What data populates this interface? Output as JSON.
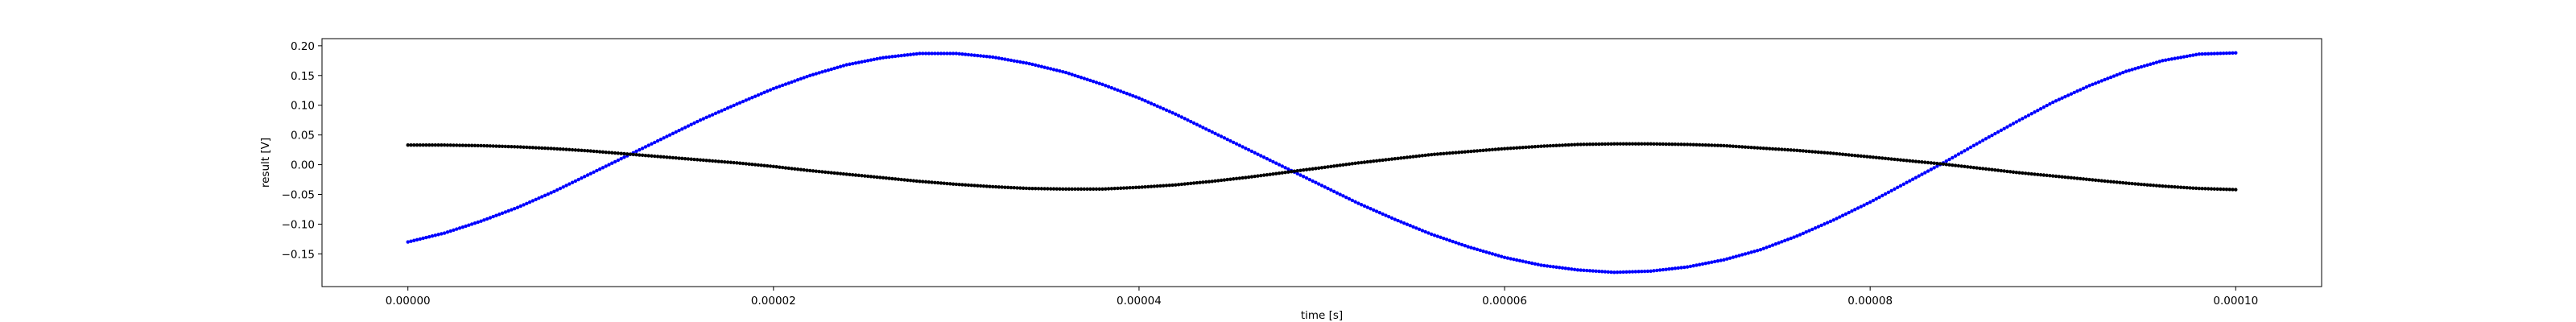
{
  "chart_data": {
    "type": "scatter",
    "title": "",
    "xlabel": "time [s]",
    "ylabel": "result [V]",
    "xlim": [
      -4.7e-06,
      0.0001047
    ],
    "ylim": [
      -0.205,
      0.212
    ],
    "grid": false,
    "legend": "none",
    "x_ticks": [
      {
        "value": 0.0,
        "label": "0.00000"
      },
      {
        "value": 2e-05,
        "label": "0.00002"
      },
      {
        "value": 4e-05,
        "label": "0.00004"
      },
      {
        "value": 6e-05,
        "label": "0.00006"
      },
      {
        "value": 8e-05,
        "label": "0.00008"
      },
      {
        "value": 0.0001,
        "label": "0.00010"
      }
    ],
    "y_ticks": [
      {
        "value": -0.15,
        "label": "−0.15"
      },
      {
        "value": -0.1,
        "label": "−0.10"
      },
      {
        "value": -0.05,
        "label": "−0.05"
      },
      {
        "value": 0.0,
        "label": "0.00"
      },
      {
        "value": 0.05,
        "label": "0.05"
      },
      {
        "value": 0.1,
        "label": "0.10"
      },
      {
        "value": 0.15,
        "label": "0.15"
      },
      {
        "value": 0.2,
        "label": "0.20"
      }
    ],
    "series": [
      {
        "color": "#0000ff",
        "marker": "dot",
        "x": [
          0.0,
          2e-06,
          4e-06,
          6e-06,
          8e-06,
          1e-05,
          1.2e-05,
          1.4e-05,
          1.6e-05,
          1.8e-05,
          2e-05,
          2.2e-05,
          2.4e-05,
          2.6e-05,
          2.8e-05,
          3e-05,
          3.2e-05,
          3.4e-05,
          3.6e-05,
          3.8e-05,
          4e-05,
          4.2e-05,
          4.4e-05,
          4.6e-05,
          4.8e-05,
          5e-05,
          5.2e-05,
          5.4e-05,
          5.6e-05,
          5.8e-05,
          6e-05,
          6.2e-05,
          6.4e-05,
          6.6e-05,
          6.8e-05,
          7e-05,
          7.2e-05,
          7.4e-05,
          7.6e-05,
          7.8e-05,
          8e-05,
          8.2e-05,
          8.4e-05,
          8.6e-05,
          8.8e-05,
          9e-05,
          9.2e-05,
          9.4e-05,
          9.6e-05,
          9.8e-05,
          0.0001
        ],
        "y": [
          -0.13,
          -0.115,
          -0.095,
          -0.072,
          -0.045,
          -0.015,
          0.015,
          0.045,
          0.075,
          0.102,
          0.128,
          0.15,
          0.168,
          0.18,
          0.187,
          0.187,
          0.181,
          0.17,
          0.155,
          0.135,
          0.112,
          0.085,
          0.055,
          0.025,
          -0.005,
          -0.035,
          -0.065,
          -0.092,
          -0.117,
          -0.138,
          -0.156,
          -0.169,
          -0.177,
          -0.181,
          -0.179,
          -0.172,
          -0.16,
          -0.143,
          -0.12,
          -0.093,
          -0.063,
          -0.03,
          0.003,
          0.038,
          0.072,
          0.105,
          0.133,
          0.157,
          0.175,
          0.186,
          0.188
        ]
      },
      {
        "color": "#000000",
        "marker": "dot",
        "x": [
          0.0,
          2e-06,
          4e-06,
          6e-06,
          8e-06,
          1e-05,
          1.2e-05,
          1.4e-05,
          1.6e-05,
          1.8e-05,
          2e-05,
          2.2e-05,
          2.4e-05,
          2.6e-05,
          2.8e-05,
          3e-05,
          3.2e-05,
          3.4e-05,
          3.6e-05,
          3.8e-05,
          4e-05,
          4.2e-05,
          4.4e-05,
          4.6e-05,
          4.8e-05,
          5e-05,
          5.2e-05,
          5.4e-05,
          5.6e-05,
          5.8e-05,
          6e-05,
          6.2e-05,
          6.4e-05,
          6.6e-05,
          6.8e-05,
          7e-05,
          7.2e-05,
          7.4e-05,
          7.6e-05,
          7.8e-05,
          8e-05,
          8.2e-05,
          8.4e-05,
          8.6e-05,
          8.8e-05,
          9e-05,
          9.2e-05,
          9.4e-05,
          9.6e-05,
          9.8e-05,
          0.0001
        ],
        "y": [
          0.033,
          0.033,
          0.032,
          0.03,
          0.027,
          0.023,
          0.018,
          0.013,
          0.008,
          0.003,
          -0.003,
          -0.01,
          -0.016,
          -0.022,
          -0.028,
          -0.033,
          -0.037,
          -0.04,
          -0.041,
          -0.041,
          -0.038,
          -0.034,
          -0.028,
          -0.021,
          -0.013,
          -0.005,
          0.003,
          0.01,
          0.017,
          0.022,
          0.027,
          0.031,
          0.034,
          0.035,
          0.035,
          0.034,
          0.032,
          0.028,
          0.024,
          0.019,
          0.013,
          0.007,
          0.001,
          -0.006,
          -0.013,
          -0.019,
          -0.025,
          -0.031,
          -0.036,
          -0.04,
          -0.042
        ]
      }
    ]
  }
}
